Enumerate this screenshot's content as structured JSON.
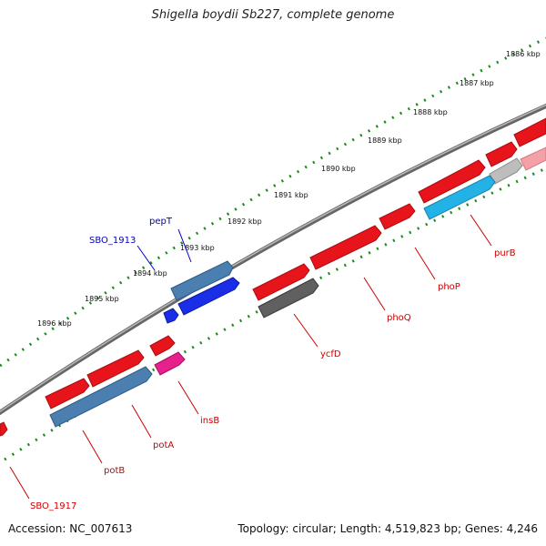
{
  "title": "Shigella boydii Sb227, complete genome",
  "accession": "Accession: NC_007613",
  "summary": "Topology: circular; Length: 4,519,823 bp; Genes: 4,246",
  "colors": {
    "red_gene": "#e8141c",
    "blue_gene": "#4a7fb0",
    "bright_blue": "#1a2ee8",
    "cyan_gene": "#22b2e6",
    "gray_gene": "#606060",
    "pink_gene": "#e8208c",
    "tick_green": "#1d8a1d",
    "label_red": "#cc0000",
    "label_blue": "#0000cc",
    "backbone": "#8a8a8a"
  },
  "scale_labels": [
    "1886 kbp",
    "1887 kbp",
    "1888 kbp",
    "1889 kbp",
    "1890 kbp",
    "1891 kbp",
    "1892 kbp",
    "1893 kbp",
    "1894 kbp",
    "1895 kbp",
    "1896 kbp"
  ],
  "outer_labels": [
    "pepT",
    "SBO_1913"
  ],
  "inner_labels": [
    "purB",
    "phoP",
    "phoQ",
    "ycfD",
    "insB",
    "potA",
    "potB",
    "SBO_1917"
  ]
}
